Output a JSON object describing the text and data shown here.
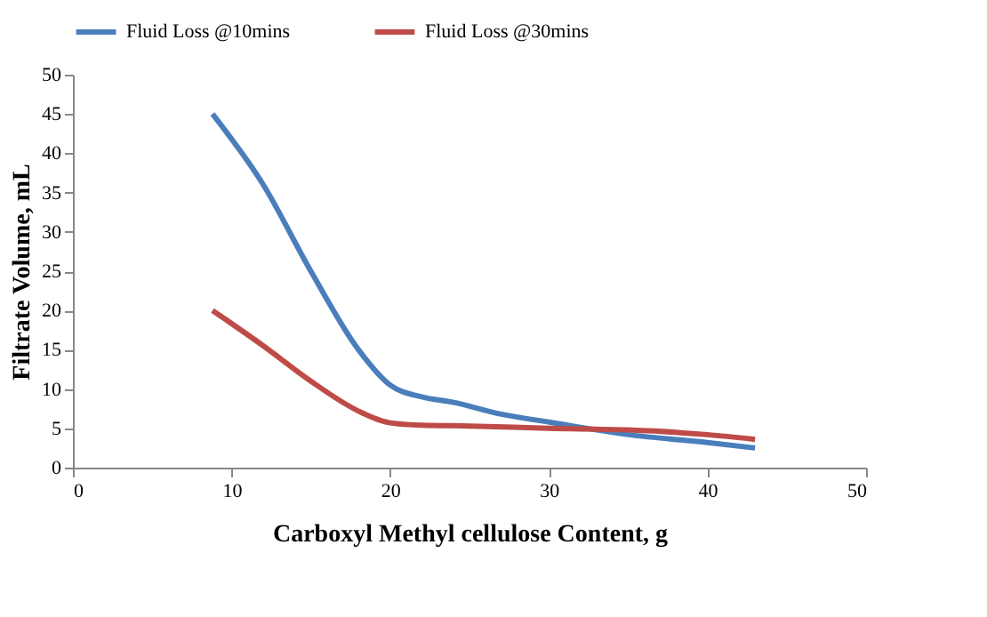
{
  "chart_data": {
    "type": "line",
    "xlabel": "Carboxyl Methyl cellulose Content, g",
    "ylabel": "Filtrate Volume, mL",
    "xlim": [
      0,
      50
    ],
    "xticks": [
      0,
      10,
      20,
      30,
      40,
      50
    ],
    "ylim": [
      0,
      50
    ],
    "yticks": [
      0,
      5,
      10,
      15,
      20,
      25,
      30,
      35,
      40,
      45,
      50
    ],
    "grid": false,
    "legend": "top",
    "marker": "none",
    "line_style": "solid",
    "series": [
      {
        "name": "Fluid Loss @10mins",
        "color": "#4a7ebb",
        "x": [
          8.8,
          12,
          15,
          18,
          20,
          22,
          24,
          27,
          30,
          35,
          40,
          43
        ],
        "values": [
          45,
          36,
          25,
          15,
          10.5,
          9,
          8.3,
          6.8,
          5.8,
          4.2,
          3.2,
          2.5
        ]
      },
      {
        "name": "Fluid Loss @30mins",
        "color": "#be4b48",
        "x": [
          8.8,
          12,
          15,
          18,
          20,
          22,
          25,
          30,
          35,
          40,
          43
        ],
        "values": [
          20,
          15.5,
          11,
          7.2,
          5.7,
          5.4,
          5.3,
          5,
          4.8,
          4.2,
          3.6
        ]
      }
    ]
  }
}
